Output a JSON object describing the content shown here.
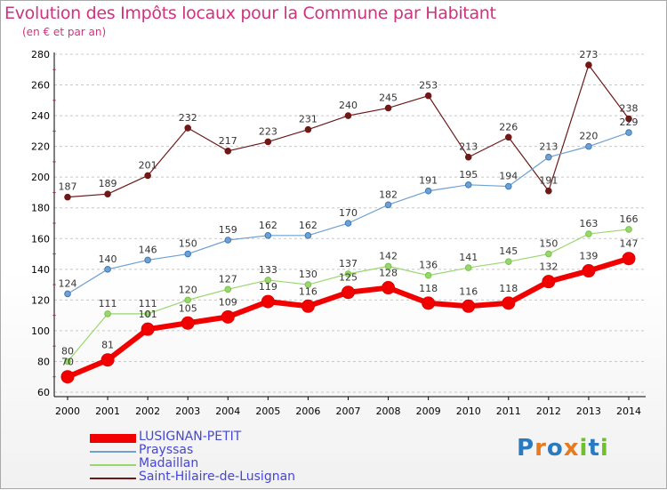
{
  "title": "Evolution des Impôts locaux pour la Commune par Habitant",
  "subtitle": "(en € et par an)",
  "logo": {
    "text": "Proxiti",
    "letters": [
      "P",
      "r",
      "o",
      "x",
      "i",
      "t",
      "i"
    ],
    "colors": [
      "#2a7ac0",
      "#e87a1e",
      "#2a7ac0",
      "#e87a1e",
      "#6fbf2e",
      "#2a7ac0",
      "#6fbf2e"
    ]
  },
  "chart_data": {
    "type": "line",
    "x": [
      "2000",
      "2001",
      "2002",
      "2003",
      "2004",
      "2005",
      "2006",
      "2007",
      "2008",
      "2009",
      "2010",
      "2011",
      "2012",
      "2013",
      "2014"
    ],
    "ylim": [
      60,
      280
    ],
    "yticks": [
      60,
      80,
      100,
      120,
      140,
      160,
      180,
      200,
      220,
      240,
      260,
      280
    ],
    "grid": "y-dashed",
    "series": [
      {
        "name": "Saint-Hilaire-de-Lusignan",
        "color": "#6b1a1a",
        "values": [
          187,
          189,
          201,
          232,
          217,
          223,
          231,
          240,
          245,
          253,
          213,
          226,
          191,
          273,
          238
        ]
      },
      {
        "name": "Prayssas",
        "color": "#6fa0d0",
        "values": [
          124,
          140,
          146,
          150,
          159,
          162,
          162,
          170,
          182,
          191,
          195,
          194,
          213,
          220,
          229
        ]
      },
      {
        "name": "Madaillan",
        "color": "#9ad66e",
        "values": [
          80,
          111,
          111,
          120,
          127,
          133,
          130,
          137,
          142,
          136,
          141,
          145,
          150,
          163,
          166
        ]
      },
      {
        "name": "LUSIGNAN-PETIT",
        "color": "#f20000",
        "values": [
          70,
          81,
          101,
          105,
          109,
          119,
          116,
          125,
          128,
          118,
          116,
          118,
          132,
          139,
          147
        ]
      }
    ],
    "legend_order": [
      "LUSIGNAN-PETIT",
      "Prayssas",
      "Madaillan",
      "Saint-Hilaire-de-Lusignan"
    ]
  }
}
